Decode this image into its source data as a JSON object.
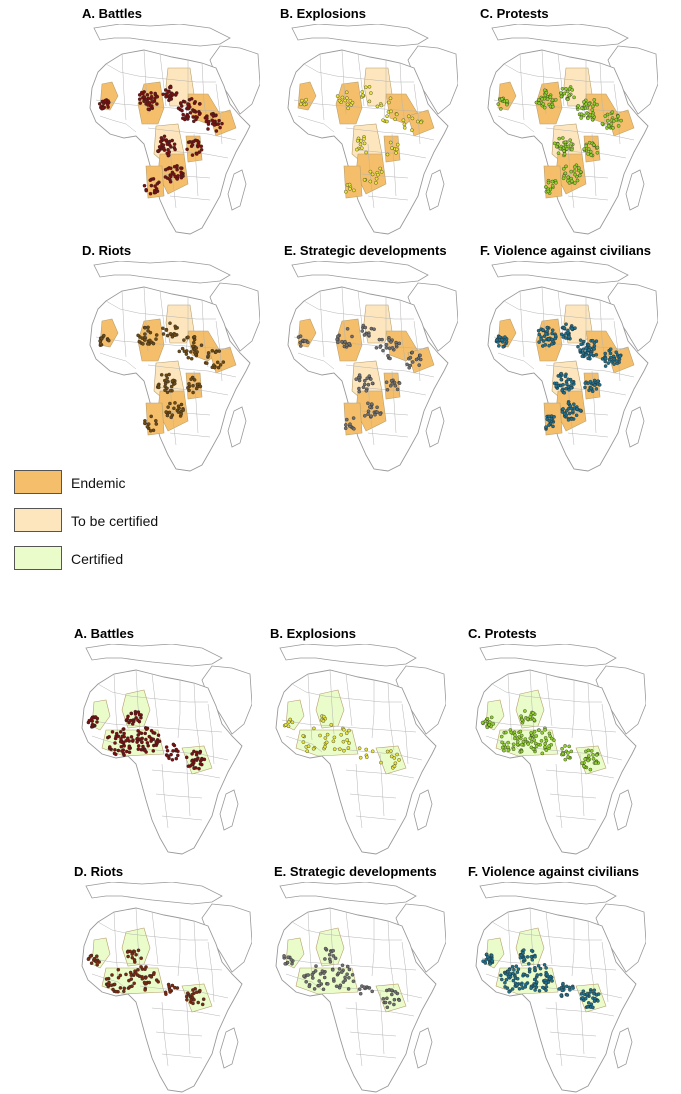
{
  "legend": [
    {
      "label": "Endemic",
      "color": "#f4be6a"
    },
    {
      "label": "To be certified",
      "color": "#fde6bd"
    },
    {
      "label": "Certified",
      "color": "#e9fcc9"
    }
  ],
  "colors": {
    "battles": "#7a1010",
    "explosions": "#e8e43a",
    "protests": "#8fcf2a",
    "riots": "#6e4a12",
    "strategic": "#6f6f6f",
    "violence": "#1f6f8c",
    "rioters_lower": "#7a2a10",
    "land_outline": "#9a9a9a",
    "marker_outline": "#222222"
  },
  "figures": [
    {
      "id": "upper",
      "highlight_type": "endemic",
      "panels": [
        {
          "title": "A.    Battles",
          "marker": "battles"
        },
        {
          "title": "B.    Explosions",
          "marker": "explosions"
        },
        {
          "title": "C.    Protests",
          "marker": "protests"
        },
        {
          "title": "D.    Riots",
          "marker": "riots"
        },
        {
          "title": "E. Strategic developments",
          "marker": "strategic"
        },
        {
          "title": "F.    Violence against civilians",
          "marker": "violence"
        }
      ]
    },
    {
      "id": "lower",
      "highlight_type": "certified",
      "panels": [
        {
          "title": "A.    Battles",
          "marker": "battles"
        },
        {
          "title": "B.     Explosions",
          "marker": "explosions"
        },
        {
          "title": "C.     Protests",
          "marker": "protests"
        },
        {
          "title": "D.    Riots",
          "marker": "rioters_lower"
        },
        {
          "title": "E. Strategic developments",
          "marker": "strategic"
        },
        {
          "title": "F.     Violence against civilians",
          "marker": "violence"
        }
      ]
    }
  ]
}
